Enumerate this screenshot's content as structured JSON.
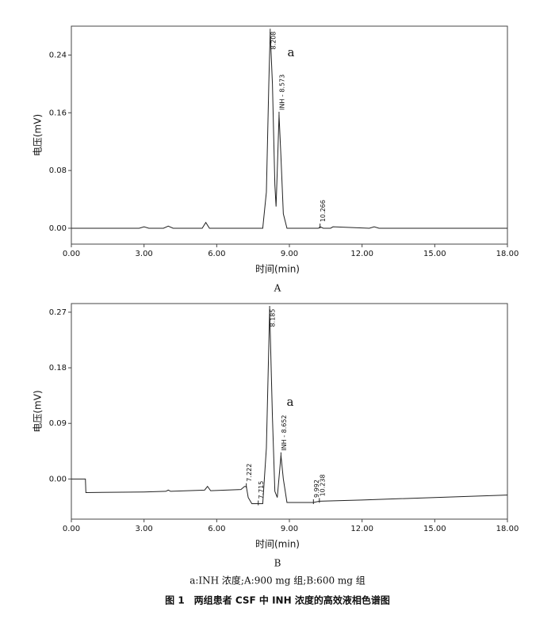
{
  "chart_data": [
    {
      "type": "line",
      "panel": "A",
      "annotation": "a",
      "xlabel": "时间(min)",
      "ylabel": "电压(mV)",
      "xlim": [
        0,
        18
      ],
      "ylim": [
        -0.022,
        0.28
      ],
      "xticks": [
        {
          "value": 0,
          "label": "0.00"
        },
        {
          "value": 3,
          "label": "3.00"
        },
        {
          "value": 6,
          "label": "6.00"
        },
        {
          "value": 9,
          "label": "9.00"
        },
        {
          "value": 12,
          "label": "12.00"
        },
        {
          "value": 15,
          "label": "15.00"
        },
        {
          "value": 18,
          "label": "18.00"
        }
      ],
      "yticks": [
        {
          "value": 0,
          "label": "0.00"
        },
        {
          "value": 0.08,
          "label": "0.08"
        },
        {
          "value": 0.16,
          "label": "0.16"
        },
        {
          "value": 0.24,
          "label": "0.24"
        }
      ],
      "color": "#222222",
      "x": [
        0,
        2.8,
        3.0,
        3.2,
        3.8,
        4.0,
        4.2,
        5.4,
        5.55,
        5.7,
        7.9,
        8.05,
        8.15,
        8.208,
        8.3,
        8.4,
        8.45,
        8.5,
        8.573,
        8.65,
        8.75,
        8.9,
        10.2,
        10.266,
        10.4,
        10.7,
        10.8,
        12.3,
        12.5,
        12.7,
        18
      ],
      "values": [
        0,
        0,
        0.002,
        0,
        0,
        0.003,
        0,
        0,
        0.008,
        0,
        0,
        0.05,
        0.2,
        0.272,
        0.2,
        0.06,
        0.03,
        0.08,
        0.157,
        0.1,
        0.02,
        0,
        0,
        0.002,
        0,
        0,
        0.002,
        0,
        0.002,
        0,
        0
      ],
      "peaks": [
        {
          "x": 8.208,
          "label": "8.208"
        },
        {
          "x": 8.573,
          "label": "INH - 8.573"
        },
        {
          "x": 10.266,
          "label": "10.266"
        }
      ]
    },
    {
      "type": "line",
      "panel": "B",
      "annotation": "a",
      "xlabel": "时间(min)",
      "ylabel": "电压(mV)",
      "xlim": [
        0,
        18
      ],
      "ylim": [
        -0.065,
        0.284
      ],
      "xticks": [
        {
          "value": 0,
          "label": "0.00"
        },
        {
          "value": 3,
          "label": "3.00"
        },
        {
          "value": 6,
          "label": "6.00"
        },
        {
          "value": 9,
          "label": "9.00"
        },
        {
          "value": 12,
          "label": "12.00"
        },
        {
          "value": 15,
          "label": "15.00"
        },
        {
          "value": 18,
          "label": "18.00"
        }
      ],
      "yticks": [
        {
          "value": 0,
          "label": "0.00"
        },
        {
          "value": 0.09,
          "label": "0.09"
        },
        {
          "value": 0.18,
          "label": "0.18"
        },
        {
          "value": 0.27,
          "label": "0.27"
        }
      ],
      "color": "#222222",
      "x": [
        0,
        0.58,
        0.6,
        3,
        3.9,
        4.0,
        4.1,
        5.5,
        5.62,
        5.75,
        7.0,
        7.15,
        7.222,
        7.3,
        7.45,
        7.715,
        7.9,
        8.05,
        8.185,
        8.3,
        8.4,
        8.5,
        8.652,
        8.75,
        8.9,
        9.992,
        10.238,
        12,
        15,
        18
      ],
      "values": [
        0,
        0,
        -0.022,
        -0.021,
        -0.02,
        -0.018,
        -0.02,
        -0.018,
        -0.012,
        -0.019,
        -0.017,
        -0.012,
        -0.012,
        -0.03,
        -0.04,
        -0.04,
        -0.04,
        0.05,
        0.275,
        0.1,
        -0.02,
        -0.03,
        0.038,
        0.0,
        -0.038,
        -0.038,
        -0.036,
        -0.034,
        -0.03,
        -0.026
      ],
      "peaks": [
        {
          "x": 7.222,
          "label": "7.222"
        },
        {
          "x": 7.715,
          "label": "7.715"
        },
        {
          "x": 8.185,
          "label": "8.185"
        },
        {
          "x": 8.652,
          "label": "INH - 8.652"
        },
        {
          "x": 9.992,
          "label": "9.992"
        },
        {
          "x": 10.238,
          "label": "10.238"
        }
      ]
    }
  ],
  "caption": "a:INH 浓度;A:900 mg 组;B:600 mg 组",
  "figure_title": "图 1　两组患者 CSF 中 INH 浓度的高效液相色谱图"
}
